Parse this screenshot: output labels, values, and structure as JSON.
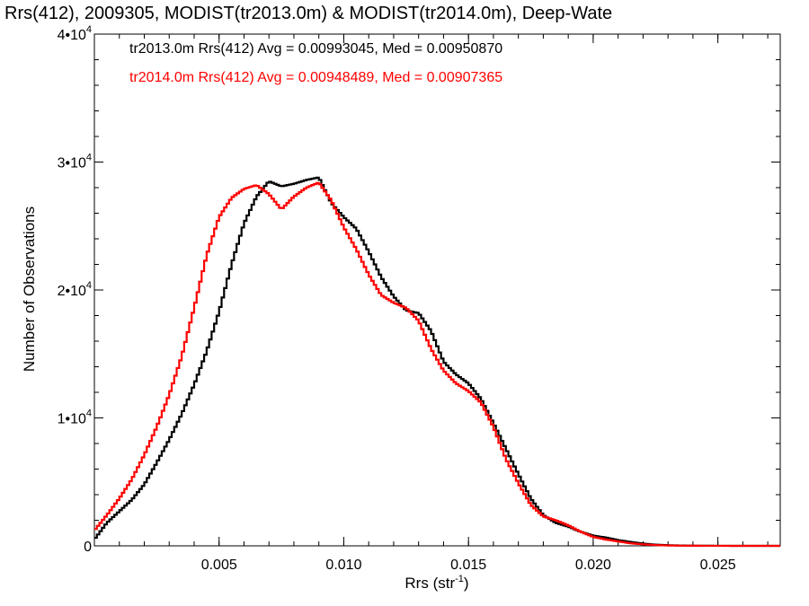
{
  "chart_data": {
    "type": "line",
    "title": "Rrs(412), 2009305, MODIST(tr2013.0m) & MODIST(tr2014.0m), Deep-Wate",
    "xlabel": {
      "main": "Rrs (str",
      "sup": "-1",
      "end": ")"
    },
    "ylabel": "Number of Observations",
    "xlim": [
      0.0,
      0.0275
    ],
    "ylim": [
      0,
      40000
    ],
    "x_ticks": [
      {
        "value": 0.005,
        "label": "0.005"
      },
      {
        "value": 0.01,
        "label": "0.010"
      },
      {
        "value": 0.015,
        "label": "0.015"
      },
      {
        "value": 0.02,
        "label": "0.020"
      },
      {
        "value": 0.025,
        "label": "0.025"
      }
    ],
    "y_ticks": [
      {
        "value": 0,
        "mant": "0",
        "exp": ""
      },
      {
        "value": 10000,
        "mant": "1•10",
        "exp": "4"
      },
      {
        "value": 20000,
        "mant": "2•10",
        "exp": "4"
      },
      {
        "value": 30000,
        "mant": "3•10",
        "exp": "4"
      },
      {
        "value": 40000,
        "mant": "4•10",
        "exp": "4"
      }
    ],
    "grid": false,
    "annotations": [
      {
        "text": "tr2013.0m Rrs(412) Avg = 0.00993045, Med = 0.00950870",
        "color": "#000000"
      },
      {
        "text": "tr2014.0m Rrs(412) Avg = 0.00948489, Med = 0.00907365",
        "color": "#ff0000"
      }
    ],
    "series": [
      {
        "color": "#000000",
        "x": [
          0.0,
          0.0005,
          0.001,
          0.0015,
          0.002,
          0.0025,
          0.003,
          0.0035,
          0.004,
          0.0045,
          0.005,
          0.0055,
          0.006,
          0.0065,
          0.007,
          0.0075,
          0.008,
          0.0085,
          0.009,
          0.0095,
          0.01,
          0.0105,
          0.011,
          0.0115,
          0.012,
          0.0125,
          0.013,
          0.0135,
          0.014,
          0.0145,
          0.015,
          0.0155,
          0.016,
          0.0165,
          0.017,
          0.0175,
          0.018,
          0.0185,
          0.019,
          0.0195,
          0.02,
          0.0205,
          0.021,
          0.0215,
          0.022,
          0.0225,
          0.023,
          0.0235,
          0.024,
          0.0245,
          0.025,
          0.026,
          0.027,
          0.0275
        ],
        "y": [
          500,
          1800,
          2700,
          3600,
          4800,
          6500,
          8300,
          10300,
          12600,
          15200,
          18300,
          22000,
          25200,
          27300,
          28500,
          28100,
          28300,
          28600,
          28800,
          26800,
          25700,
          24800,
          23000,
          21000,
          19500,
          18400,
          18200,
          16800,
          14400,
          13400,
          12700,
          11500,
          9600,
          7600,
          5600,
          3700,
          2400,
          1800,
          1500,
          1100,
          800,
          650,
          450,
          300,
          180,
          90,
          50,
          30,
          15,
          8,
          5,
          0,
          0,
          0
        ]
      },
      {
        "color": "#ff0000",
        "x": [
          0.0,
          0.0005,
          0.001,
          0.0015,
          0.002,
          0.0025,
          0.003,
          0.0035,
          0.004,
          0.0045,
          0.005,
          0.0055,
          0.006,
          0.0065,
          0.007,
          0.0075,
          0.008,
          0.0085,
          0.009,
          0.0095,
          0.01,
          0.0105,
          0.011,
          0.0115,
          0.012,
          0.0125,
          0.013,
          0.0135,
          0.014,
          0.0145,
          0.015,
          0.0155,
          0.016,
          0.0165,
          0.017,
          0.0175,
          0.018,
          0.0185,
          0.019,
          0.0195,
          0.02,
          0.0205,
          0.021,
          0.0215,
          0.022,
          0.0225,
          0.023,
          0.0235,
          0.024,
          0.0245,
          0.025,
          0.026,
          0.027,
          0.0275
        ],
        "y": [
          1200,
          2400,
          3700,
          5200,
          7100,
          9300,
          11800,
          14800,
          18600,
          22700,
          25700,
          27200,
          27900,
          28200,
          27500,
          26300,
          27300,
          28000,
          28400,
          27000,
          24900,
          23200,
          21200,
          19600,
          19000,
          18600,
          17600,
          15400,
          13700,
          12700,
          12100,
          11200,
          9300,
          6800,
          4900,
          3200,
          2300,
          2000,
          1600,
          1100,
          700,
          500,
          350,
          200,
          120,
          60,
          30,
          15,
          8,
          5,
          3,
          0,
          0,
          0
        ]
      }
    ]
  }
}
